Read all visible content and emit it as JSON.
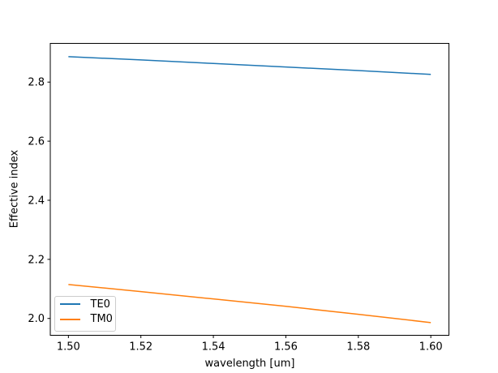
{
  "figure": {
    "background_color": "#ffffff",
    "spine_color": "#000000",
    "tick_color": "#000000",
    "text_color": "#000000",
    "legend_border_color": "#cccccc"
  },
  "chart_data": {
    "type": "line",
    "title": "",
    "xlabel": "wavelength [um]",
    "ylabel": "Effective index",
    "x": [
      1.5,
      1.52,
      1.54,
      1.56,
      1.58,
      1.6
    ],
    "series": [
      {
        "name": "TE0",
        "color": "#1f77b4",
        "values": [
          2.886,
          2.875,
          2.863,
          2.851,
          2.839,
          2.826
        ]
      },
      {
        "name": "TM0",
        "color": "#ff7f0e",
        "values": [
          2.115,
          2.091,
          2.066,
          2.041,
          2.014,
          1.986
        ]
      }
    ],
    "xlim": [
      1.495,
      1.605
    ],
    "ylim": [
      1.943,
      2.931
    ],
    "xticks": {
      "values": [
        1.5,
        1.52,
        1.54,
        1.56,
        1.58,
        1.6
      ],
      "labels": [
        "1.50",
        "1.52",
        "1.54",
        "1.56",
        "1.58",
        "1.60"
      ]
    },
    "yticks": {
      "values": [
        2.0,
        2.2,
        2.4,
        2.6,
        2.8
      ],
      "labels": [
        "2.0",
        "2.2",
        "2.4",
        "2.6",
        "2.8"
      ]
    },
    "grid": false,
    "legend": {
      "position": "lower-left"
    }
  }
}
